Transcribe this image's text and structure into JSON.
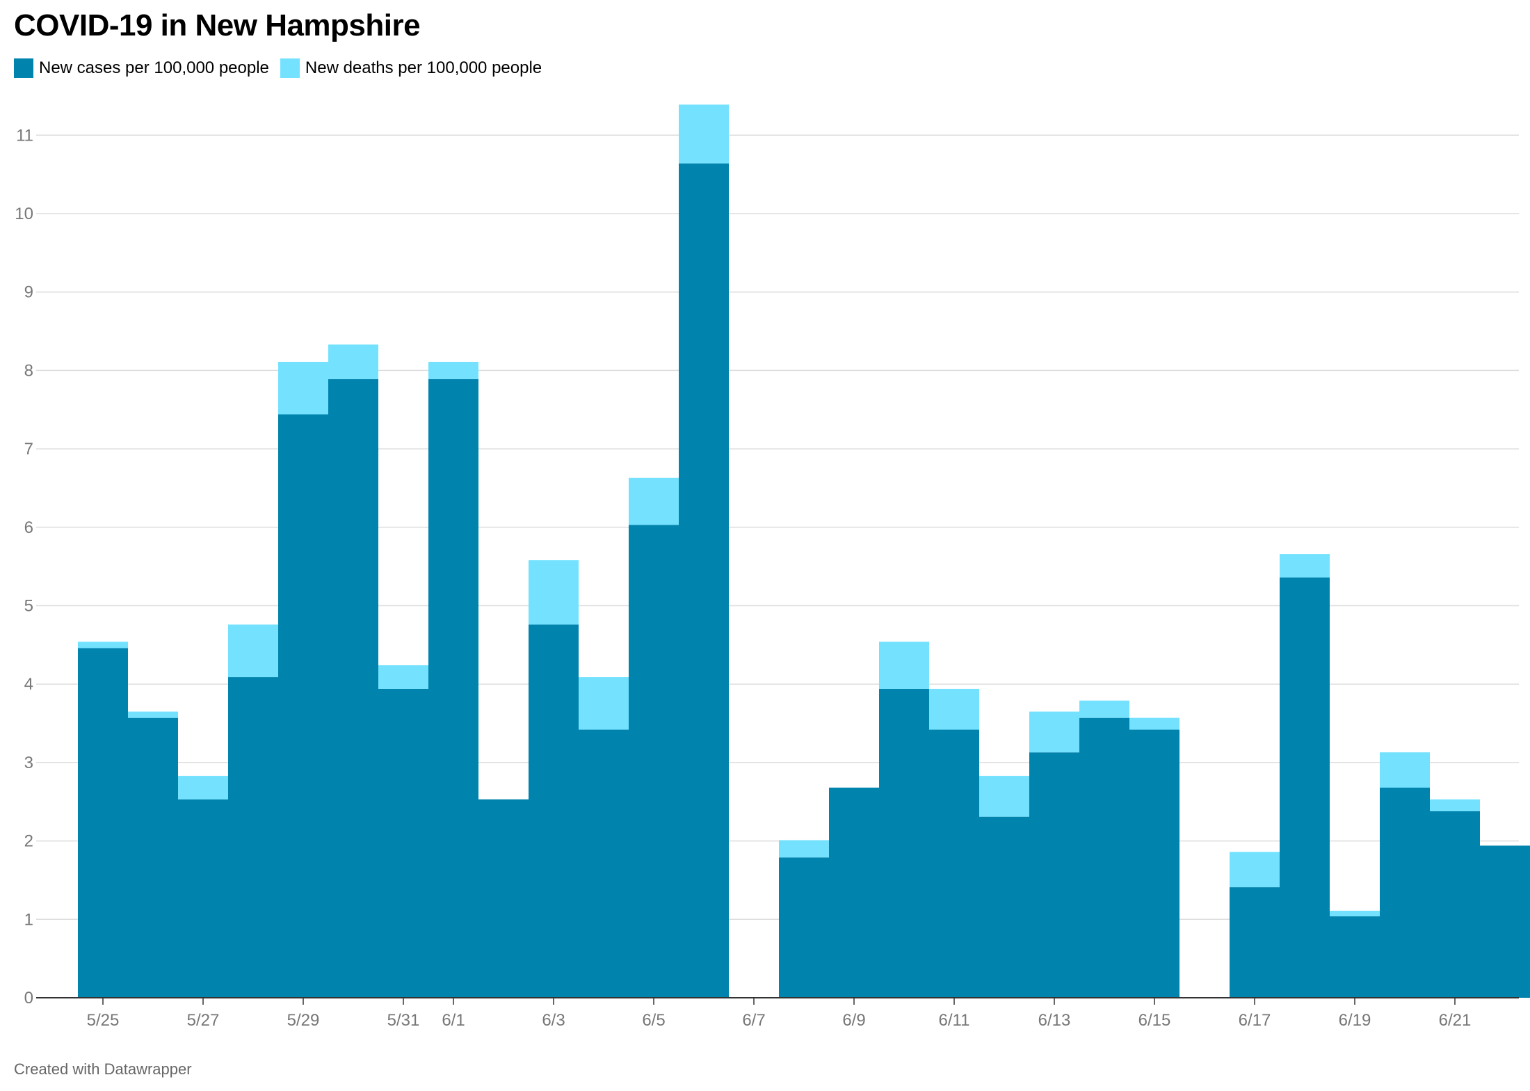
{
  "title": "COVID-19 in New Hampshire",
  "footer": "Created with Datawrapper",
  "colors": {
    "cases": "#0083ad",
    "deaths": "#74e2ff",
    "grid": "#dddddd",
    "axis_text": "#777777",
    "baseline": "#333333"
  },
  "legend": [
    {
      "label": "New cases per 100,000 people",
      "color": "#0083ad"
    },
    {
      "label": "New deaths per 100,000 people",
      "color": "#74e2ff"
    }
  ],
  "chart_data": {
    "type": "bar",
    "stacked": true,
    "title": "COVID-19 in New Hampshire",
    "xlabel": "",
    "ylabel": "",
    "ylim": [
      0,
      11.5
    ],
    "yticks": [
      0,
      1,
      2,
      3,
      4,
      5,
      6,
      7,
      8,
      9,
      10,
      11
    ],
    "grid": true,
    "legend_position": "top-left",
    "categories": [
      "5/25",
      "5/26",
      "5/27",
      "5/28",
      "5/29",
      "5/30",
      "5/31",
      "6/1",
      "6/2",
      "6/3",
      "6/4",
      "6/5",
      "6/6",
      "6/7",
      "6/8",
      "6/9",
      "6/10",
      "6/11",
      "6/12",
      "6/13",
      "6/14",
      "6/15",
      "6/16",
      "6/17",
      "6/18",
      "6/19",
      "6/20",
      "6/21",
      "6/22"
    ],
    "tick_labels": [
      "5/25",
      "5/27",
      "5/29",
      "5/31",
      "6/1",
      "6/3",
      "6/5",
      "6/7",
      "6/9",
      "6/11",
      "6/13",
      "6/15",
      "6/17",
      "6/19",
      "6/21"
    ],
    "series": [
      {
        "name": "New cases per 100,000 people",
        "color": "#0083ad",
        "values": [
          4.46,
          3.57,
          2.53,
          4.09,
          7.44,
          7.89,
          3.94,
          7.89,
          2.53,
          4.76,
          3.42,
          6.03,
          10.64,
          0,
          1.79,
          2.68,
          3.94,
          3.42,
          2.31,
          3.13,
          3.57,
          3.42,
          0,
          1.41,
          5.36,
          1.04,
          2.68,
          2.38,
          1.94
        ]
      },
      {
        "name": "New deaths per 100,000 people",
        "color": "#74e2ff",
        "values": [
          0.08,
          0.08,
          0.3,
          0.67,
          0.67,
          0.44,
          0.3,
          0.22,
          0,
          0.82,
          0.67,
          0.6,
          0.75,
          0,
          0.22,
          0,
          0.6,
          0.52,
          0.52,
          0.52,
          0.22,
          0.15,
          0,
          0.45,
          0.3,
          0.07,
          0.45,
          0.15,
          0
        ]
      }
    ]
  }
}
